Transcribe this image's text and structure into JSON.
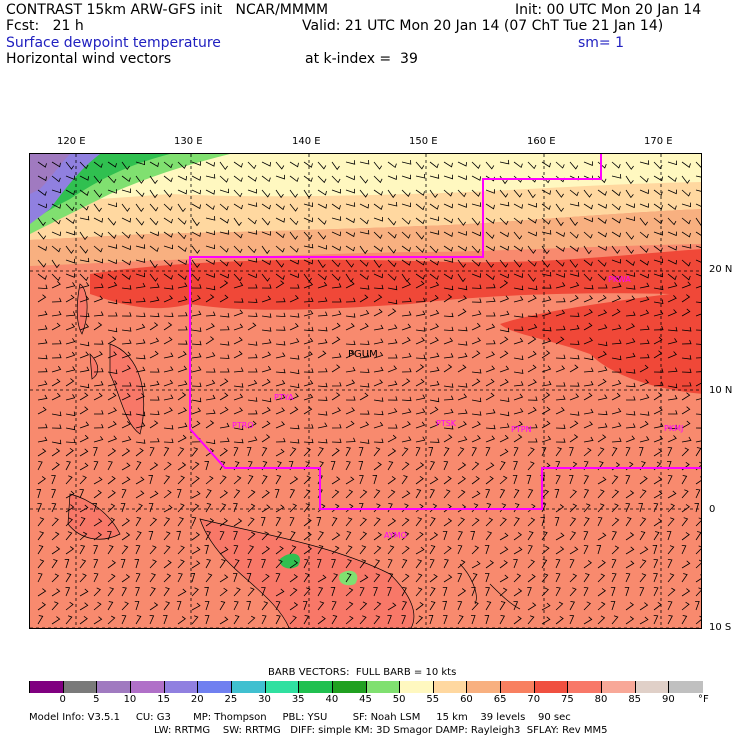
{
  "header": {
    "line1_left": "CONTRAST 15km ARW-GFS init   NCAR/MMMM",
    "line1_right": "Init: 00 UTC Mon 20 Jan 14",
    "line2_left": "Fcst:   21 h",
    "line2_right": "Valid: 21 UTC Mon 20 Jan 14 (07 ChT Tue 21 Jan 14)",
    "field1": "Surface dewpoint temperature",
    "smoothing": "sm= 1",
    "field2": "Horizontal wind vectors",
    "level": "at k-index =  39"
  },
  "map": {
    "lon_labels": [
      "120 E",
      "130 E",
      "140 E",
      "150 E",
      "160 E",
      "170 E"
    ],
    "lat_labels": [
      "20 N",
      "10 N",
      "0",
      "10 S"
    ],
    "stations": [
      "PGUM",
      "PTYA",
      "PTRO",
      "PTSK",
      "PTPN",
      "PKMJ",
      "PKWA",
      "AYMO"
    ],
    "colors": {
      "boundary": "#ff00ff",
      "station": "#ff00ff"
    }
  },
  "legend": {
    "barb_text": "BARB VECTORS:  FULL BARB = 10 kts",
    "ticks": [
      "0",
      "5",
      "10",
      "15",
      "20",
      "25",
      "30",
      "35",
      "40",
      "45",
      "50",
      "55",
      "60",
      "65",
      "70",
      "75",
      "80",
      "85",
      "90"
    ],
    "unit": "°F",
    "colors": [
      "#800080",
      "#7a7a7a",
      "#a07ac0",
      "#b070c8",
      "#9080e0",
      "#7080f0",
      "#40c0d0",
      "#30e0a0",
      "#20c050",
      "#20a020",
      "#80e070",
      "#fff8c0",
      "#ffd8a0",
      "#f8b080",
      "#f88060",
      "#f05040",
      "#f87868",
      "#f8a898",
      "#e0d0c8",
      "#c0c0c0"
    ]
  },
  "footer": {
    "line1": "Model Info: V3.5.1     CU: G3       MP: Thompson     PBL: YSU        SF: Noah LSM     15 km    39 levels    90 sec",
    "line2": "LW: RRTMG    SW: RRTMG   DIFF: simple KM: 3D Smagor DAMP: Rayleigh3  SFLAY: Rev MM5"
  }
}
